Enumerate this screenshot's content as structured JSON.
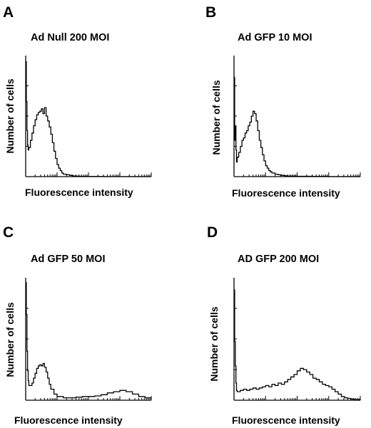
{
  "chart_data": [
    {
      "panel": "A",
      "type": "line",
      "title": "Ad Null 200 MOI",
      "xlabel": "Fluorescence intensity",
      "ylabel": "Number of cells",
      "x_scale": "log",
      "xlim": [
        0,
        4
      ],
      "ylim": [
        0,
        100
      ],
      "grid": false,
      "x": [
        0.0,
        0.02,
        0.04,
        0.06,
        0.08,
        0.1,
        0.15,
        0.2,
        0.25,
        0.3,
        0.35,
        0.4,
        0.45,
        0.5,
        0.55,
        0.6,
        0.65,
        0.7,
        0.75,
        0.8,
        0.85,
        0.9,
        0.95,
        1.0,
        1.05,
        1.1,
        1.15,
        1.2,
        1.3,
        1.4,
        1.5,
        1.6,
        1.7,
        1.8,
        2.0,
        2.5,
        3.0,
        3.5,
        4.0
      ],
      "values": [
        95,
        62,
        38,
        26,
        22,
        24,
        30,
        36,
        42,
        47,
        51,
        53,
        54,
        56,
        52,
        57,
        50,
        46,
        41,
        35,
        28,
        21,
        15,
        10,
        7,
        5,
        3,
        2,
        1.5,
        1,
        0.6,
        0.4,
        0.3,
        0.2,
        0.1,
        0,
        0,
        0,
        0
      ]
    },
    {
      "panel": "B",
      "type": "line",
      "title": "Ad GFP 10 MOI",
      "xlabel": "Fluorescence intensity",
      "ylabel": "Number of cells",
      "x_scale": "log",
      "xlim": [
        0,
        4
      ],
      "ylim": [
        0,
        100
      ],
      "grid": false,
      "x": [
        0.0,
        0.02,
        0.04,
        0.06,
        0.08,
        0.1,
        0.15,
        0.2,
        0.25,
        0.3,
        0.35,
        0.4,
        0.45,
        0.5,
        0.55,
        0.6,
        0.65,
        0.7,
        0.75,
        0.8,
        0.85,
        0.9,
        0.95,
        1.0,
        1.05,
        1.1,
        1.15,
        1.2,
        1.3,
        1.4,
        1.5,
        1.6,
        1.7,
        1.8,
        2.0,
        2.5,
        3.0,
        3.5,
        4.0
      ],
      "values": [
        82,
        30,
        42,
        22,
        12,
        16,
        20,
        25,
        30,
        32,
        36,
        38,
        42,
        45,
        50,
        54,
        52,
        46,
        38,
        30,
        24,
        18,
        13,
        9,
        7,
        5,
        4,
        3,
        2,
        1.5,
        1,
        0.7,
        0.5,
        0.4,
        0.3,
        0.2,
        0,
        0,
        0
      ]
    },
    {
      "panel": "C",
      "type": "line",
      "title": "Ad GFP 50 MOI",
      "xlabel": "Fluorescence intensity",
      "ylabel": "Number of cells",
      "x_scale": "log",
      "xlim": [
        0,
        4
      ],
      "ylim": [
        0,
        100
      ],
      "grid": false,
      "x": [
        0.0,
        0.02,
        0.04,
        0.06,
        0.08,
        0.1,
        0.15,
        0.2,
        0.25,
        0.3,
        0.35,
        0.4,
        0.45,
        0.5,
        0.55,
        0.6,
        0.65,
        0.7,
        0.75,
        0.8,
        0.9,
        1.0,
        1.2,
        1.4,
        1.6,
        1.8,
        2.0,
        2.2,
        2.4,
        2.6,
        2.8,
        3.0,
        3.2,
        3.4,
        3.6,
        3.8,
        4.0
      ],
      "values": [
        96,
        70,
        40,
        24,
        16,
        12,
        12,
        14,
        18,
        22,
        26,
        28,
        29,
        28,
        30,
        27,
        23,
        18,
        13,
        9,
        5,
        3,
        2,
        2,
        2.5,
        3,
        3,
        3.5,
        4.5,
        6,
        7,
        8,
        7,
        5,
        3,
        2,
        1
      ]
    },
    {
      "panel": "D",
      "type": "line",
      "title": "AD GFP 200 MOI",
      "xlabel": "Fluorescence intensity",
      "ylabel": "Number of cells",
      "x_scale": "log",
      "xlim": [
        0,
        4
      ],
      "ylim": [
        0,
        100
      ],
      "grid": false,
      "x": [
        0.0,
        0.02,
        0.04,
        0.06,
        0.08,
        0.1,
        0.2,
        0.3,
        0.4,
        0.5,
        0.6,
        0.7,
        0.8,
        0.9,
        1.0,
        1.1,
        1.2,
        1.3,
        1.4,
        1.5,
        1.6,
        1.7,
        1.8,
        1.9,
        2.0,
        2.1,
        2.2,
        2.3,
        2.4,
        2.5,
        2.6,
        2.7,
        2.8,
        2.9,
        3.0,
        3.1,
        3.2,
        3.3,
        3.4,
        3.5,
        3.6,
        3.7,
        3.8,
        4.0
      ],
      "values": [
        90,
        48,
        28,
        14,
        8,
        7,
        8,
        9,
        8,
        9,
        10,
        9,
        10,
        11,
        12,
        11,
        13,
        12,
        14,
        13,
        15,
        17,
        19,
        21,
        24,
        26,
        25,
        23,
        21,
        18,
        17,
        15,
        13,
        12,
        11,
        9,
        7,
        5,
        3,
        2,
        1.5,
        1,
        0.5,
        0
      ]
    }
  ],
  "panels": [
    {
      "letter": "A"
    },
    {
      "letter": "B"
    },
    {
      "letter": "C"
    },
    {
      "letter": "D"
    }
  ]
}
